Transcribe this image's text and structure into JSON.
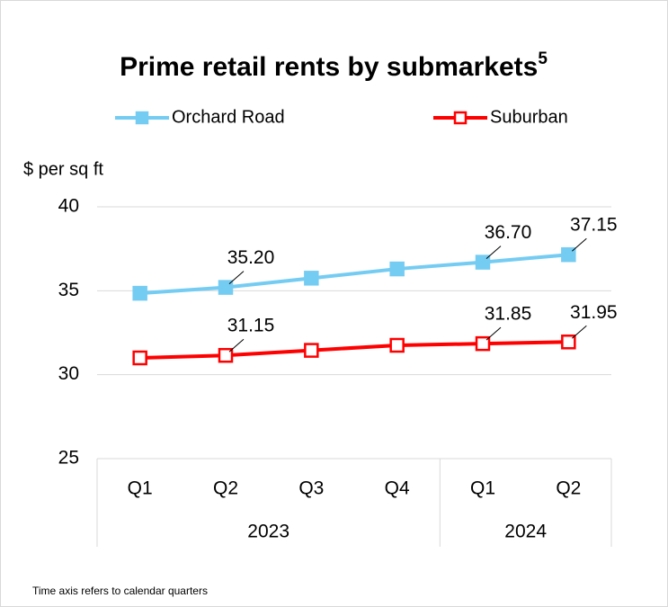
{
  "chart_data": {
    "type": "line",
    "title": "Prime retail rents by submarkets",
    "title_note": "5",
    "y_label": "$ per sq ft",
    "footnote": "Time axis refers to calendar quarters",
    "category_groups": [
      {
        "label": "2023",
        "categories": [
          "Q1",
          "Q2",
          "Q3",
          "Q4"
        ]
      },
      {
        "label": "2024",
        "categories": [
          "Q1",
          "Q2"
        ]
      }
    ],
    "series": [
      {
        "name": "Orchard Road",
        "color": "#75ccf2",
        "marker_fill": "#75ccf2",
        "values": [
          34.85,
          35.2,
          35.75,
          36.3,
          36.7,
          37.15
        ],
        "value_labels": [
          null,
          "35.20",
          null,
          null,
          "36.70",
          "37.15"
        ]
      },
      {
        "name": "Suburban",
        "color": "#ff0000",
        "marker_fill": "#ffffff",
        "values": [
          31.0,
          31.15,
          31.45,
          31.75,
          31.85,
          31.95
        ],
        "value_labels": [
          null,
          "31.15",
          null,
          null,
          "31.85",
          "31.95"
        ]
      }
    ],
    "ylim": [
      25,
      40
    ],
    "yticks": [
      25,
      30,
      35,
      40
    ],
    "grid": true
  }
}
